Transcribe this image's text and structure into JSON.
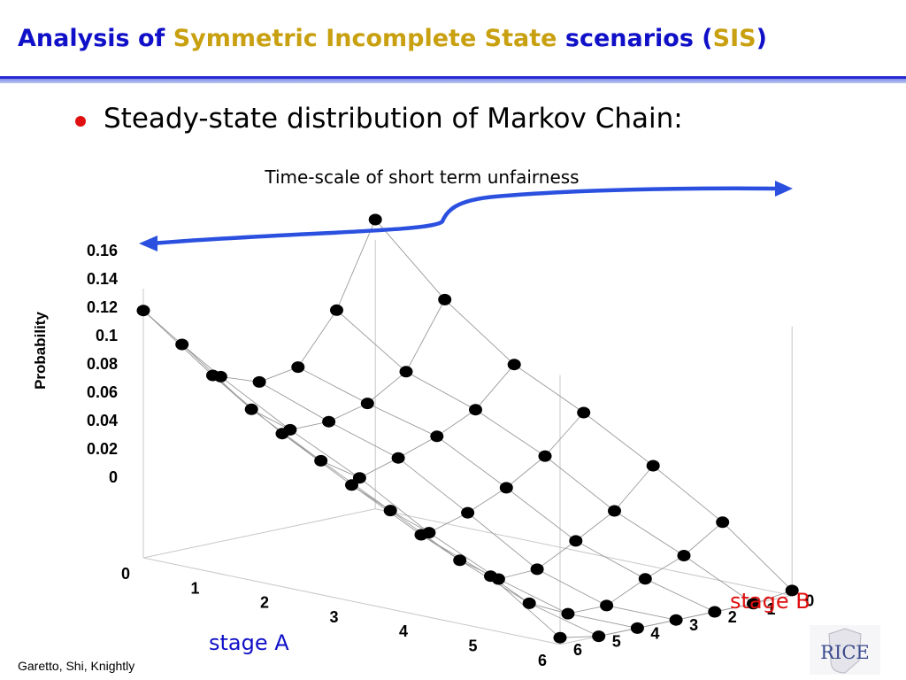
{
  "slide": {
    "title_parts": [
      {
        "text": "Analysis of ",
        "color": "#1010c8"
      },
      {
        "text": "Symmetric Incomplete State",
        "color": "#c8a010"
      },
      {
        "text": " scenarios (",
        "color": "#1010c8"
      },
      {
        "text": "SIS",
        "color": "#c8a010"
      },
      {
        "text": ")",
        "color": "#1010c8"
      }
    ],
    "bullet": "Steady-state distribution of Markov Chain:",
    "annotation": "Time-scale of short term unfairness",
    "footer": "Garetto, Shi, Knightly",
    "logo_text": "RICE"
  },
  "chart_data": {
    "type": "scatter3d",
    "title": "",
    "zlabel": "Probability",
    "xlabel": "stage A",
    "ylabel": "stage B",
    "x_ticks": [
      "0",
      "1",
      "2",
      "3",
      "4",
      "5",
      "6"
    ],
    "y_ticks": [
      "0",
      "1",
      "2",
      "3",
      "4",
      "5",
      "6"
    ],
    "z_ticks": [
      "0",
      "0.02",
      "0.04",
      "0.06",
      "0.08",
      "0.1",
      "0.12",
      "0.14",
      "0.16"
    ],
    "zlim": [
      0,
      0.16
    ],
    "grid": "wireframe connecting adjacent points",
    "colors": {
      "points": "#000000",
      "stage_a": "#1010c8",
      "stage_b": "#e01010",
      "arrow": "#2b50e0"
    },
    "z": [
      [
        0.172,
        0.133,
        0.103,
        0.083,
        0.06,
        0.035,
        0.003
      ],
      [
        0.123,
        0.095,
        0.081,
        0.062,
        0.038,
        0.02,
        0.0
      ],
      [
        0.094,
        0.081,
        0.07,
        0.048,
        0.025,
        0.011,
        0.0
      ],
      [
        0.09,
        0.075,
        0.062,
        0.038,
        0.013,
        0.0,
        0.0
      ],
      [
        0.098,
        0.075,
        0.055,
        0.031,
        0.012,
        0.0,
        0.0
      ],
      [
        0.122,
        0.092,
        0.07,
        0.049,
        0.028,
        0.011,
        0.0
      ],
      [
        0.147,
        0.117,
        0.091,
        0.069,
        0.048,
        0.032,
        0.004
      ]
    ]
  }
}
